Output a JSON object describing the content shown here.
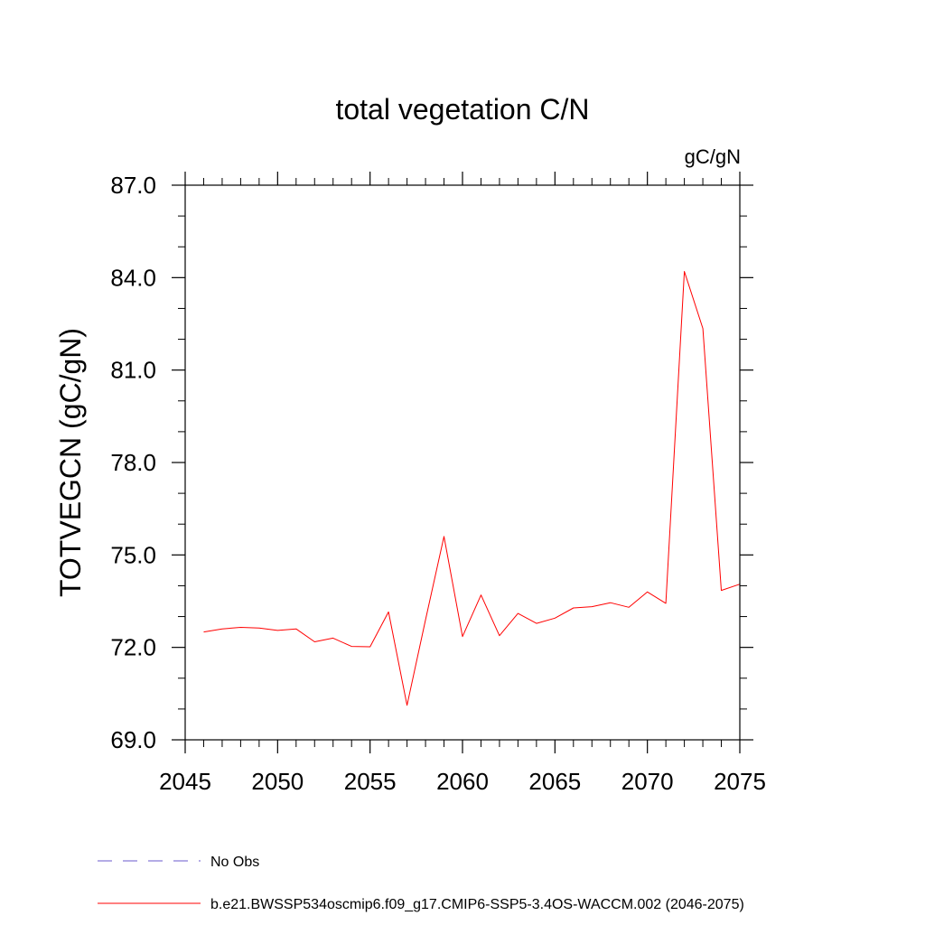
{
  "chart_data": {
    "type": "line",
    "title": "total vegetation C/N",
    "units_label": "gC/gN",
    "ylabel": "TOTVEGCN  (gC/gN)",
    "xlabel": "",
    "xlim": [
      2045,
      2075
    ],
    "ylim": [
      69.0,
      87.0
    ],
    "x_ticks": [
      2045,
      2050,
      2055,
      2060,
      2065,
      2070,
      2075
    ],
    "x_tick_labels": [
      "2045",
      "2050",
      "2055",
      "2060",
      "2065",
      "2070",
      "2075"
    ],
    "y_ticks": [
      69.0,
      72.0,
      75.0,
      78.0,
      81.0,
      84.0,
      87.0
    ],
    "y_tick_labels": [
      "69.0",
      "72.0",
      "75.0",
      "78.0",
      "81.0",
      "84.0",
      "87.0"
    ],
    "x_minor_step": 1,
    "y_minor_step": 1.0,
    "grid": false,
    "legend_position": "bottom-left",
    "series": [
      {
        "name": "b.e21.BWSSP534oscmip6.f09_g17.CMIP6-SSP5-3.4OS-WACCM.002 (2046-2075)",
        "color": "#ff0000",
        "style": "solid",
        "x": [
          2046,
          2047,
          2048,
          2049,
          2050,
          2051,
          2052,
          2053,
          2054,
          2055,
          2056,
          2057,
          2058,
          2059,
          2060,
          2061,
          2062,
          2063,
          2064,
          2065,
          2066,
          2067,
          2068,
          2069,
          2070,
          2071,
          2072,
          2073,
          2074,
          2075
        ],
        "y": [
          72.5,
          72.6,
          72.65,
          72.63,
          72.55,
          72.6,
          72.18,
          72.3,
          72.03,
          72.02,
          73.15,
          70.12,
          72.9,
          75.6,
          72.35,
          73.7,
          72.38,
          73.1,
          72.78,
          72.95,
          73.28,
          73.32,
          73.45,
          73.3,
          73.8,
          73.43,
          84.2,
          82.35,
          73.85,
          74.05
        ]
      }
    ],
    "legend": [
      {
        "label": "No Obs",
        "color": "#6a5acd",
        "style": "dashed"
      },
      {
        "label": "b.e21.BWSSP534oscmip6.f09_g17.CMIP6-SSP5-3.4OS-WACCM.002 (2046-2075)",
        "color": "#ff0000",
        "style": "solid"
      }
    ]
  }
}
